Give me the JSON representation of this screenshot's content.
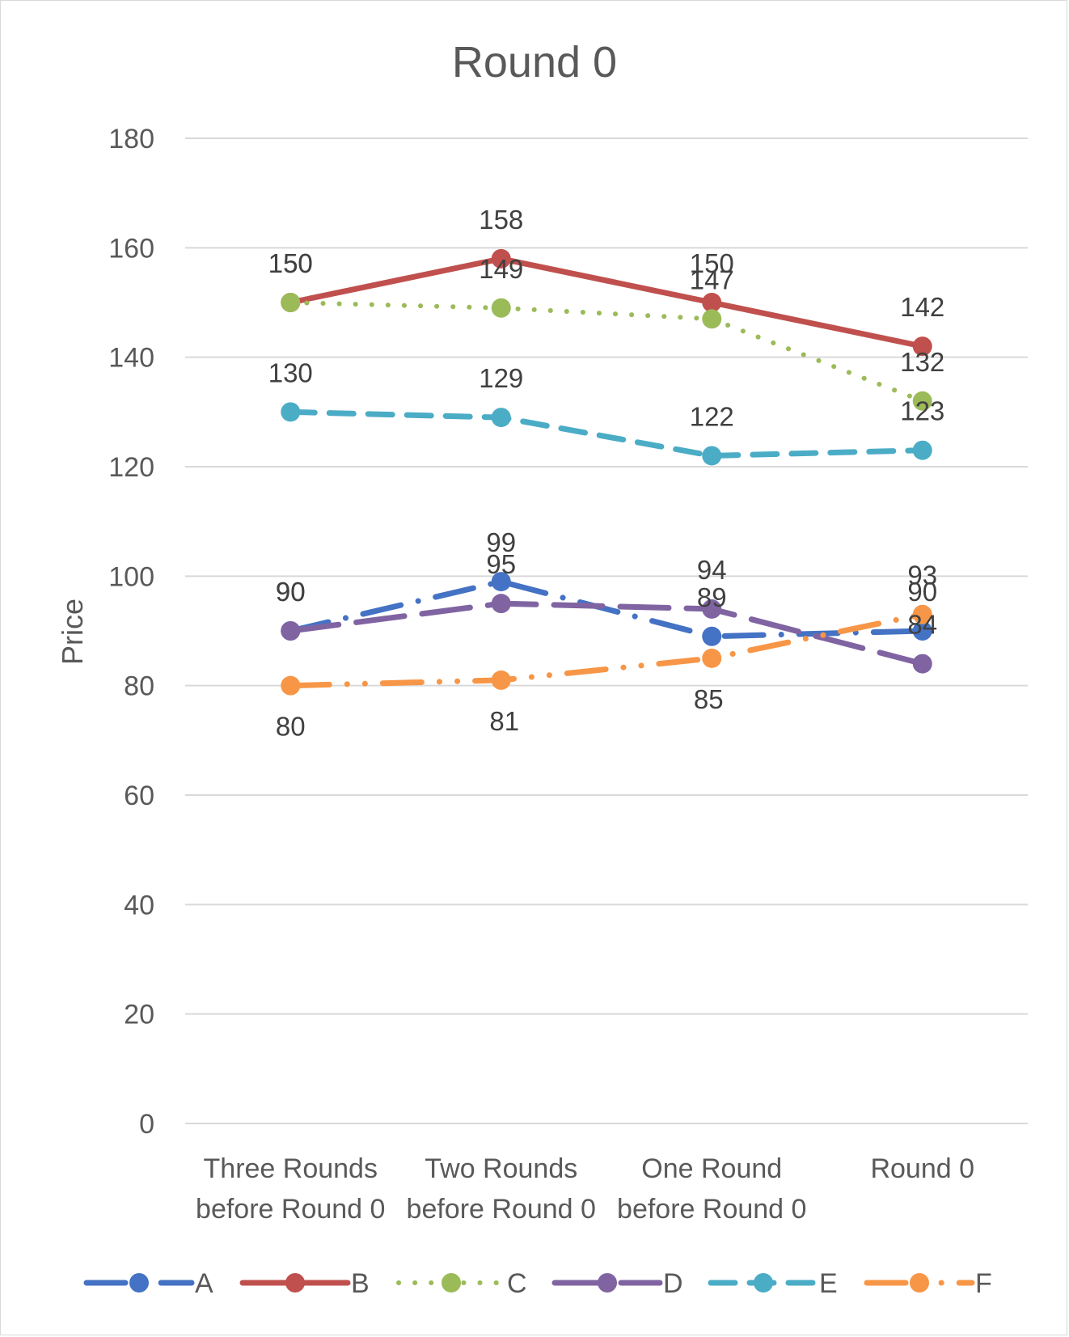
{
  "chart_data": {
    "type": "line",
    "title": "Round 0",
    "xlabel": "",
    "ylabel": "Price",
    "ylim": [
      0,
      180
    ],
    "yticks": [
      "0",
      "20",
      "40",
      "60",
      "80",
      "100",
      "120",
      "140",
      "160",
      "180"
    ],
    "categories": [
      [
        "Three Rounds",
        "before Round 0"
      ],
      [
        "Two Rounds",
        "before Round 0"
      ],
      [
        "One Round",
        "before Round 0"
      ],
      [
        "Round 0"
      ]
    ],
    "grid": true,
    "legend_position": "bottom",
    "series": [
      {
        "name": "A",
        "color": "#4472C4",
        "dash": "long-dash-dot",
        "values": [
          90,
          99,
          89,
          90
        ],
        "labels": [
          "90",
          "99",
          "89",
          "90"
        ]
      },
      {
        "name": "B",
        "color": "#C0504D",
        "dash": "solid",
        "values": [
          150,
          158,
          150,
          142
        ],
        "labels": [
          "150",
          "158",
          "150",
          "142"
        ]
      },
      {
        "name": "C",
        "color": "#9BBB59",
        "dash": "round-dot",
        "values": [
          150,
          149,
          147,
          132
        ],
        "labels": [
          "150",
          "149",
          "147",
          "132"
        ]
      },
      {
        "name": "D",
        "color": "#8064A2",
        "dash": "long-dash",
        "values": [
          90,
          95,
          94,
          84
        ],
        "labels": [
          "90",
          "95",
          "94",
          "84"
        ]
      },
      {
        "name": "E",
        "color": "#4BACC6",
        "dash": "dash",
        "values": [
          130,
          129,
          122,
          123
        ],
        "labels": [
          "130",
          "129",
          "122",
          "123"
        ]
      },
      {
        "name": "F",
        "color": "#F79646",
        "dash": "long-dash-dot-dot",
        "values": [
          80,
          81,
          85,
          93
        ],
        "labels": [
          "80",
          "81",
          "85",
          "93"
        ]
      }
    ]
  }
}
